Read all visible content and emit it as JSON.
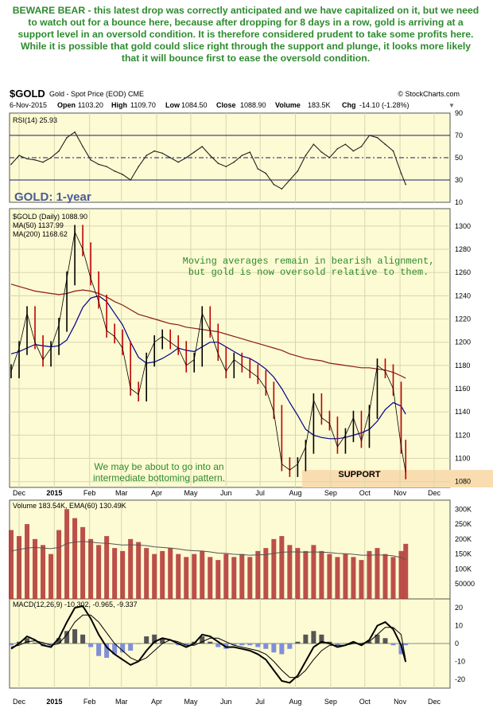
{
  "commentary": "BEWARE BEAR - this latest drop was correctly anticipated and we have capitalized on it, but we need to watch out for a bounce here, because after dropping for 8 days in a row, gold is arriving at a support level in an oversold condition. It is therefore considered prudent to take some profits here. While it is possible that gold could slice right through the support and plunge, it looks more likely that it will bounce first to ease the oversold condition.",
  "header": {
    "symbol": "$GOLD",
    "desc": "Gold - Spot Price (EOD) CME",
    "source": "© StockCharts.com",
    "date": "6-Nov-2015",
    "open_label": "Open",
    "open": "1103.20",
    "high_label": "High",
    "high": "1109.70",
    "low_label": "Low",
    "low": "1084.50",
    "close_label": "Close",
    "close": "1088.90",
    "volume_label": "Volume",
    "volume": "183.5K",
    "chg_label": "Chg",
    "chg": "-14.10 (-1.28%)"
  },
  "colors": {
    "panel_bg": "#fdfbd3",
    "commentary": "#2e8b2e",
    "ma50": "#00008b",
    "ma200": "#8b1a1a",
    "volume_bar": "#b03030",
    "support_band": "#f9ddb0",
    "title": "#4a5a9a"
  },
  "chart_data": [
    {
      "type": "line",
      "name": "RSI(14)",
      "legend": "RSI(14) 25.93",
      "ylim": [
        10,
        90
      ],
      "yticks": [
        10,
        30,
        50,
        70,
        90
      ],
      "reference_lines": [
        30,
        50,
        70
      ],
      "x": [
        "2014-11-24",
        "2014-12-01",
        "2014-12-08",
        "2014-12-15",
        "2014-12-22",
        "2014-12-29",
        "2015-01-05",
        "2015-01-12",
        "2015-01-19",
        "2015-01-26",
        "2015-02-02",
        "2015-02-09",
        "2015-02-16",
        "2015-02-23",
        "2015-03-02",
        "2015-03-09",
        "2015-03-16",
        "2015-03-23",
        "2015-03-30",
        "2015-04-06",
        "2015-04-13",
        "2015-04-20",
        "2015-04-27",
        "2015-05-04",
        "2015-05-11",
        "2015-05-18",
        "2015-05-25",
        "2015-06-01",
        "2015-06-08",
        "2015-06-15",
        "2015-06-22",
        "2015-06-29",
        "2015-07-06",
        "2015-07-13",
        "2015-07-20",
        "2015-07-27",
        "2015-08-03",
        "2015-08-10",
        "2015-08-17",
        "2015-08-24",
        "2015-08-31",
        "2015-09-07",
        "2015-09-14",
        "2015-09-21",
        "2015-09-28",
        "2015-10-05",
        "2015-10-12",
        "2015-10-19",
        "2015-10-26",
        "2015-11-02",
        "2015-11-06"
      ],
      "values": [
        44,
        52,
        49,
        48,
        46,
        50,
        56,
        68,
        73,
        60,
        48,
        44,
        42,
        38,
        35,
        30,
        42,
        52,
        56,
        54,
        50,
        46,
        50,
        55,
        60,
        52,
        45,
        42,
        46,
        52,
        55,
        40,
        36,
        26,
        22,
        30,
        38,
        52,
        62,
        55,
        50,
        58,
        62,
        56,
        60,
        70,
        68,
        62,
        56,
        36,
        26
      ]
    },
    {
      "type": "line",
      "name": "$GOLD (Daily)",
      "title": "GOLD: 1-year",
      "legend": [
        "$GOLD (Daily) 1088.90",
        "MA(50) 1137.99",
        "MA(200) 1168.62"
      ],
      "ylim": [
        1075,
        1315
      ],
      "yticks": [
        1080,
        1100,
        1120,
        1140,
        1160,
        1180,
        1200,
        1220,
        1240,
        1260,
        1280,
        1300
      ],
      "x": [
        "2014-11-24",
        "2014-12-01",
        "2014-12-08",
        "2014-12-15",
        "2014-12-22",
        "2014-12-29",
        "2015-01-05",
        "2015-01-12",
        "2015-01-19",
        "2015-01-26",
        "2015-02-02",
        "2015-02-09",
        "2015-02-16",
        "2015-02-23",
        "2015-03-02",
        "2015-03-09",
        "2015-03-16",
        "2015-03-23",
        "2015-03-30",
        "2015-04-06",
        "2015-04-13",
        "2015-04-20",
        "2015-04-27",
        "2015-05-04",
        "2015-05-11",
        "2015-05-18",
        "2015-05-25",
        "2015-06-01",
        "2015-06-08",
        "2015-06-15",
        "2015-06-22",
        "2015-06-29",
        "2015-07-06",
        "2015-07-13",
        "2015-07-20",
        "2015-07-27",
        "2015-08-03",
        "2015-08-10",
        "2015-08-17",
        "2015-08-24",
        "2015-08-31",
        "2015-09-07",
        "2015-09-14",
        "2015-09-21",
        "2015-09-28",
        "2015-10-05",
        "2015-10-12",
        "2015-10-19",
        "2015-10-26",
        "2015-11-02",
        "2015-11-06"
      ],
      "series": [
        {
          "name": "$GOLD (Daily)",
          "values": [
            1175,
            1195,
            1225,
            1200,
            1185,
            1195,
            1215,
            1255,
            1295,
            1280,
            1255,
            1235,
            1210,
            1205,
            1195,
            1160,
            1155,
            1185,
            1200,
            1205,
            1200,
            1195,
            1180,
            1185,
            1225,
            1210,
            1190,
            1175,
            1185,
            1180,
            1175,
            1170,
            1160,
            1140,
            1095,
            1090,
            1095,
            1110,
            1150,
            1135,
            1130,
            1110,
            1120,
            1135,
            1115,
            1140,
            1180,
            1175,
            1160,
            1110,
            1088
          ]
        },
        {
          "name": "MA(50)",
          "values": [
            1190,
            1192,
            1195,
            1198,
            1197,
            1196,
            1197,
            1202,
            1215,
            1230,
            1238,
            1240,
            1235,
            1225,
            1215,
            1200,
            1187,
            1182,
            1183,
            1186,
            1190,
            1195,
            1193,
            1192,
            1196,
            1200,
            1200,
            1196,
            1192,
            1188,
            1186,
            1182,
            1177,
            1170,
            1160,
            1148,
            1137,
            1125,
            1120,
            1118,
            1117,
            1117,
            1118,
            1120,
            1122,
            1125,
            1132,
            1142,
            1148,
            1145,
            1138
          ]
        },
        {
          "name": "MA(200)",
          "values": [
            1250,
            1248,
            1246,
            1244,
            1243,
            1242,
            1241,
            1242,
            1244,
            1245,
            1244,
            1242,
            1239,
            1235,
            1232,
            1228,
            1224,
            1222,
            1220,
            1218,
            1216,
            1215,
            1213,
            1212,
            1211,
            1210,
            1209,
            1207,
            1205,
            1203,
            1201,
            1199,
            1197,
            1195,
            1193,
            1190,
            1188,
            1186,
            1185,
            1184,
            1182,
            1181,
            1180,
            1179,
            1178,
            1178,
            1177,
            1176,
            1174,
            1171,
            1169
          ]
        }
      ],
      "annotations": [
        "Moving averages remain in bearish alignment, but gold is now oversold relative to them.",
        "We may be about to go into an intermediate bottoming pattern.",
        "SUPPORT"
      ],
      "support_level": 1080
    },
    {
      "type": "bar",
      "name": "Volume",
      "legend": "Volume 183.54K, EMA(60) 130.49K",
      "ylim": [
        0,
        330000
      ],
      "yticks": [
        "50000",
        "100K",
        "150K",
        "200K",
        "250K",
        "300K"
      ],
      "ytick_values": [
        50000,
        100000,
        150000,
        200000,
        250000,
        300000
      ],
      "x": [
        "2014-11-24",
        "2014-12-01",
        "2014-12-08",
        "2014-12-15",
        "2014-12-22",
        "2014-12-29",
        "2015-01-05",
        "2015-01-12",
        "2015-01-19",
        "2015-01-26",
        "2015-02-02",
        "2015-02-09",
        "2015-02-16",
        "2015-02-23",
        "2015-03-02",
        "2015-03-09",
        "2015-03-16",
        "2015-03-23",
        "2015-03-30",
        "2015-04-06",
        "2015-04-13",
        "2015-04-20",
        "2015-04-27",
        "2015-05-04",
        "2015-05-11",
        "2015-05-18",
        "2015-05-25",
        "2015-06-01",
        "2015-06-08",
        "2015-06-15",
        "2015-06-22",
        "2015-06-29",
        "2015-07-06",
        "2015-07-13",
        "2015-07-20",
        "2015-07-27",
        "2015-08-03",
        "2015-08-10",
        "2015-08-17",
        "2015-08-24",
        "2015-08-31",
        "2015-09-07",
        "2015-09-14",
        "2015-09-21",
        "2015-09-28",
        "2015-10-05",
        "2015-10-12",
        "2015-10-19",
        "2015-10-26",
        "2015-11-02",
        "2015-11-06"
      ],
      "series": [
        {
          "name": "Volume",
          "values": [
            230000,
            210000,
            250000,
            200000,
            180000,
            150000,
            230000,
            300000,
            270000,
            240000,
            200000,
            180000,
            210000,
            170000,
            160000,
            200000,
            190000,
            170000,
            150000,
            160000,
            170000,
            150000,
            140000,
            150000,
            160000,
            140000,
            130000,
            150000,
            140000,
            150000,
            140000,
            160000,
            170000,
            200000,
            210000,
            180000,
            170000,
            160000,
            180000,
            160000,
            150000,
            140000,
            150000,
            140000,
            130000,
            160000,
            170000,
            150000,
            140000,
            160000,
            184000
          ]
        },
        {
          "name": "EMA(60)",
          "values": [
            160000,
            165000,
            170000,
            172000,
            170000,
            168000,
            172000,
            185000,
            190000,
            192000,
            190000,
            187000,
            186000,
            183000,
            180000,
            181000,
            180000,
            178000,
            174000,
            172000,
            170000,
            167000,
            163000,
            161000,
            160000,
            157000,
            153000,
            152000,
            149000,
            148000,
            146000,
            147000,
            148000,
            152000,
            156000,
            157000,
            157000,
            156000,
            157000,
            156000,
            155000,
            152000,
            151000,
            149000,
            146000,
            146000,
            147000,
            146000,
            144000,
            138000,
            130000
          ]
        }
      ]
    },
    {
      "type": "line",
      "name": "MACD(12,26,9)",
      "legend": "MACD(12,26,9) -10.302, -0.965, -9.337",
      "ylim": [
        -25,
        25
      ],
      "yticks": [
        -20,
        -10,
        0,
        10,
        20
      ],
      "x": [
        "2014-11-24",
        "2014-12-01",
        "2014-12-08",
        "2014-12-15",
        "2014-12-22",
        "2014-12-29",
        "2015-01-05",
        "2015-01-12",
        "2015-01-19",
        "2015-01-26",
        "2015-02-02",
        "2015-02-09",
        "2015-02-16",
        "2015-02-23",
        "2015-03-02",
        "2015-03-09",
        "2015-03-16",
        "2015-03-23",
        "2015-03-30",
        "2015-04-06",
        "2015-04-13",
        "2015-04-20",
        "2015-04-27",
        "2015-05-04",
        "2015-05-11",
        "2015-05-18",
        "2015-05-25",
        "2015-06-01",
        "2015-06-08",
        "2015-06-15",
        "2015-06-22",
        "2015-06-29",
        "2015-07-06",
        "2015-07-13",
        "2015-07-20",
        "2015-07-27",
        "2015-08-03",
        "2015-08-10",
        "2015-08-17",
        "2015-08-24",
        "2015-08-31",
        "2015-09-07",
        "2015-09-14",
        "2015-09-21",
        "2015-09-28",
        "2015-10-05",
        "2015-10-12",
        "2015-10-19",
        "2015-10-26",
        "2015-11-02",
        "2015-11-06"
      ],
      "series": [
        {
          "name": "MACD",
          "values": [
            -3,
            0,
            4,
            2,
            -1,
            -2,
            3,
            12,
            20,
            21,
            14,
            5,
            -2,
            -6,
            -9,
            -12,
            -10,
            -4,
            1,
            3,
            2,
            0,
            -2,
            0,
            5,
            4,
            1,
            -2,
            -2,
            -3,
            -4,
            -6,
            -9,
            -15,
            -21,
            -22,
            -18,
            -10,
            -2,
            1,
            0,
            -2,
            -1,
            1,
            -1,
            2,
            10,
            12,
            8,
            -1,
            -10.302
          ]
        },
        {
          "name": "Signal",
          "values": [
            -2,
            -1,
            1,
            1.5,
            0.5,
            -1,
            0,
            5,
            12,
            16,
            16,
            12,
            6,
            0,
            -4,
            -8,
            -10,
            -8,
            -4,
            0,
            2,
            1,
            -1,
            -1,
            1,
            3,
            3,
            1,
            -1,
            -2,
            -3,
            -4,
            -6,
            -10,
            -15,
            -19,
            -19,
            -15,
            -9,
            -4,
            -1,
            -1,
            -1,
            0,
            0,
            1,
            5,
            9,
            9,
            5,
            -9.337
          ]
        },
        {
          "name": "Histogram",
          "values": [
            -1,
            1,
            3,
            0.5,
            -1.5,
            -1,
            3,
            7,
            8,
            5,
            -2,
            -7,
            -8,
            -6,
            -5,
            -4,
            0,
            4,
            5,
            3,
            0,
            -1,
            -1,
            1,
            4,
            1,
            -2,
            -3,
            -1,
            -1,
            -1,
            -2,
            -3,
            -5,
            -6,
            -3,
            1,
            5,
            7,
            5,
            1,
            -1,
            0,
            1,
            -1,
            1,
            5,
            3,
            -1,
            -6,
            -0.965
          ]
        }
      ]
    }
  ],
  "x_axis": {
    "months": [
      "Dec",
      "2015",
      "Feb",
      "Mar",
      "Apr",
      "May",
      "Jun",
      "Jul",
      "Aug",
      "Sep",
      "Oct",
      "Nov",
      "Dec"
    ],
    "month_dates": [
      "2014-12-01",
      "2015-01-01",
      "2015-02-01",
      "2015-03-01",
      "2015-04-01",
      "2015-05-01",
      "2015-06-01",
      "2015-07-01",
      "2015-08-01",
      "2015-09-01",
      "2015-10-01",
      "2015-11-01",
      "2015-12-01"
    ]
  }
}
